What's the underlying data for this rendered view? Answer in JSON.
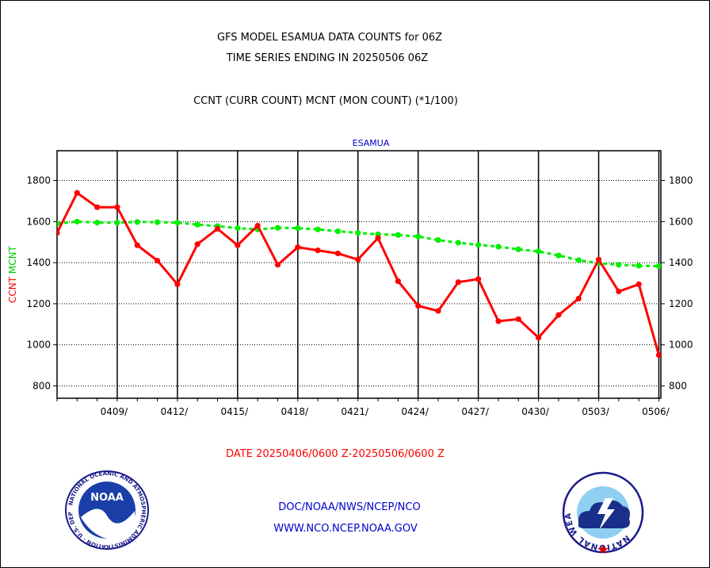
{
  "header": {
    "title_line1": "GFS MODEL ESAMUA DATA COUNTS for 06Z",
    "title_line2": "TIME SERIES ENDING IN 20250506 06Z",
    "subtitle": "CCNT (CURR COUNT) MCNT (MON COUNT) (*1/100)"
  },
  "chart_data": {
    "type": "line",
    "title": "ESAMUA",
    "ylabel_parts": [
      {
        "text": "CCNT",
        "color": "#ff0000"
      },
      {
        "text": "MCNT",
        "color": "#00cc00"
      }
    ],
    "xlabel": "DATE 20250406/0600 Z-20250506/0600 Z",
    "ylim": [
      740,
      1945
    ],
    "yticks": [
      800,
      1000,
      1200,
      1400,
      1600,
      1800
    ],
    "xlim": [
      0,
      30.1
    ],
    "x_major_ticks": [
      3,
      6,
      9,
      12,
      15,
      18,
      21,
      24,
      27,
      30
    ],
    "x_tick_labels": [
      "0409/",
      "0412/",
      "0415/",
      "0418/",
      "0421/",
      "0424/",
      "0427/",
      "0430/",
      "0503/",
      "0506/"
    ],
    "grid": true,
    "series": [
      {
        "key": "CCNT",
        "color": "#ff0000",
        "x": [
          0,
          1,
          2,
          3,
          4,
          5,
          6,
          7,
          8,
          9,
          10,
          11,
          12,
          13,
          14,
          15,
          16,
          17,
          18,
          19,
          20,
          21,
          22,
          23,
          24,
          25,
          26,
          27,
          28,
          29,
          30
        ],
        "values": [
          1545,
          1740,
          1670,
          1670,
          1485,
          1410,
          1295,
          1490,
          1565,
          1485,
          1580,
          1390,
          1475,
          1460,
          1445,
          1415,
          1520,
          1310,
          1190,
          1165,
          1305,
          1320,
          1115,
          1125,
          1035,
          1145,
          1225,
          1415,
          1260,
          1295,
          950
        ]
      },
      {
        "key": "MCNT",
        "color": "#00ee00",
        "x": [
          0,
          1,
          2,
          3,
          4,
          5,
          6,
          7,
          8,
          9,
          10,
          11,
          12,
          13,
          14,
          15,
          16,
          17,
          18,
          19,
          20,
          21,
          22,
          23,
          24,
          25,
          26,
          27,
          28,
          29,
          30
        ],
        "values": [
          1590,
          1600,
          1595,
          1595,
          1598,
          1597,
          1595,
          1585,
          1578,
          1568,
          1562,
          1570,
          1568,
          1562,
          1553,
          1545,
          1538,
          1535,
          1527,
          1510,
          1497,
          1487,
          1478,
          1465,
          1455,
          1435,
          1412,
          1398,
          1390,
          1385,
          1383
        ]
      }
    ]
  },
  "footer": {
    "link1": "DOC/NOAA/NWS/NCEP/NCO",
    "link2": "WWW.NCO.NCEP.NOAA.GOV"
  },
  "logos": {
    "noaa": {
      "name": "NOAA",
      "ring_text": "NATIONAL OCEANIC AND ATMOSPHERIC ADMINISTRATION · U.S. DEPARTMENT OF COMMERCE"
    },
    "nws": {
      "ring_text": "NATIONAL WEATHER SERVICE"
    }
  }
}
